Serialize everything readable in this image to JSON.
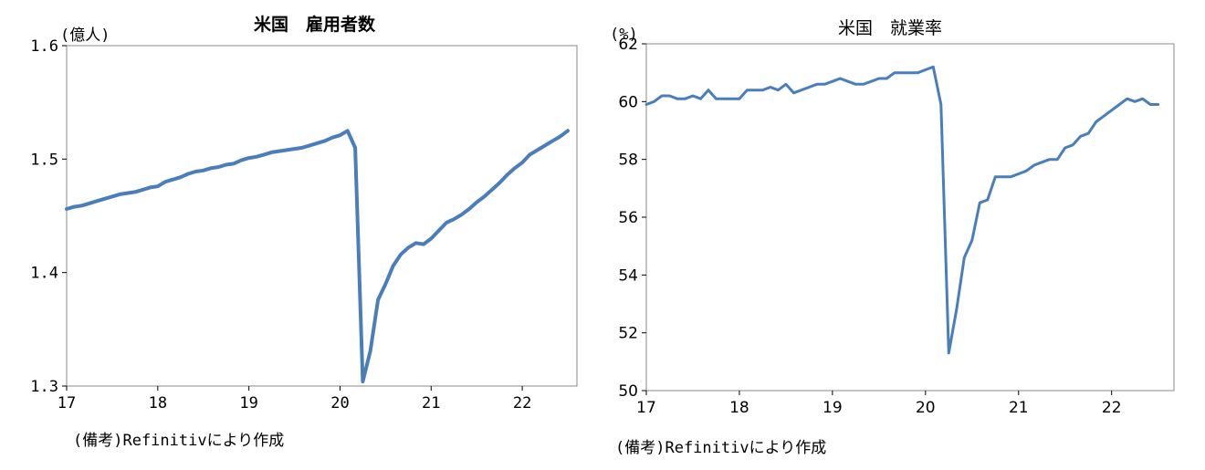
{
  "chart_data": [
    {
      "type": "line",
      "title": "米国　雇用者数",
      "unit_label": "(億人)",
      "source_note": "(備考)Refinitivにより作成",
      "color": "#4a7ebb",
      "ylim": [
        1.3,
        1.6
      ],
      "yticks": [
        "1.6",
        "1.5",
        "1.4",
        "1.3"
      ],
      "xlim": [
        17,
        22.6
      ],
      "xticks": [
        "17",
        "18",
        "19",
        "20",
        "21",
        "22"
      ],
      "series": [
        {
          "x": [
            17.0,
            17.083,
            17.167,
            17.25,
            17.333,
            17.417,
            17.5,
            17.583,
            17.667,
            17.75,
            17.833,
            17.917,
            18.0,
            18.083,
            18.167,
            18.25,
            18.333,
            18.417,
            18.5,
            18.583,
            18.667,
            18.75,
            18.833,
            18.917,
            19.0,
            19.083,
            19.167,
            19.25,
            19.333,
            19.417,
            19.5,
            19.583,
            19.667,
            19.75,
            19.833,
            19.917,
            20.0,
            20.083,
            20.167,
            20.25,
            20.333,
            20.417,
            20.5,
            20.583,
            20.667,
            20.75,
            20.833,
            20.917,
            21.0,
            21.083,
            21.167,
            21.25,
            21.333,
            21.417,
            21.5,
            21.583,
            21.667,
            21.75,
            21.833,
            21.917,
            22.0,
            22.083,
            22.167,
            22.25,
            22.333,
            22.417,
            22.5
          ],
          "values": [
            1.456,
            1.458,
            1.459,
            1.461,
            1.463,
            1.465,
            1.467,
            1.469,
            1.47,
            1.471,
            1.473,
            1.475,
            1.476,
            1.48,
            1.482,
            1.484,
            1.487,
            1.489,
            1.49,
            1.492,
            1.493,
            1.495,
            1.496,
            1.499,
            1.501,
            1.502,
            1.504,
            1.506,
            1.507,
            1.508,
            1.509,
            1.51,
            1.512,
            1.514,
            1.516,
            1.519,
            1.521,
            1.525,
            1.51,
            1.304,
            1.331,
            1.376,
            1.39,
            1.406,
            1.416,
            1.422,
            1.426,
            1.425,
            1.43,
            1.437,
            1.444,
            1.447,
            1.451,
            1.456,
            1.462,
            1.467,
            1.473,
            1.479,
            1.486,
            1.492,
            1.497,
            1.504,
            1.508,
            1.512,
            1.516,
            1.52,
            1.525
          ]
        }
      ]
    },
    {
      "type": "line",
      "title": "米国　就業率",
      "unit_label": "(%)",
      "source_note": "(備考)Refinitivにより作成",
      "color": "#4a7ebb",
      "ylim": [
        50,
        62
      ],
      "yticks": [
        "62",
        "60",
        "58",
        "56",
        "54",
        "52",
        "50"
      ],
      "xlim": [
        17,
        22.67
      ],
      "xticks": [
        "17",
        "18",
        "19",
        "20",
        "21",
        "22"
      ],
      "series": [
        {
          "x": [
            17.0,
            17.083,
            17.167,
            17.25,
            17.333,
            17.417,
            17.5,
            17.583,
            17.667,
            17.75,
            17.833,
            17.917,
            18.0,
            18.083,
            18.167,
            18.25,
            18.333,
            18.417,
            18.5,
            18.583,
            18.667,
            18.75,
            18.833,
            18.917,
            19.0,
            19.083,
            19.167,
            19.25,
            19.333,
            19.417,
            19.5,
            19.583,
            19.667,
            19.75,
            19.833,
            19.917,
            20.0,
            20.083,
            20.167,
            20.25,
            20.333,
            20.417,
            20.5,
            20.583,
            20.667,
            20.75,
            20.833,
            20.917,
            21.0,
            21.083,
            21.167,
            21.25,
            21.333,
            21.417,
            21.5,
            21.583,
            21.667,
            21.75,
            21.833,
            21.917,
            22.0,
            22.083,
            22.167,
            22.25,
            22.333,
            22.417,
            22.5
          ],
          "values": [
            59.9,
            60.0,
            60.2,
            60.2,
            60.1,
            60.1,
            60.2,
            60.1,
            60.4,
            60.1,
            60.1,
            60.1,
            60.1,
            60.4,
            60.4,
            60.4,
            60.5,
            60.4,
            60.6,
            60.3,
            60.4,
            60.5,
            60.6,
            60.6,
            60.7,
            60.8,
            60.7,
            60.6,
            60.6,
            60.7,
            60.8,
            60.8,
            61.0,
            61.0,
            61.0,
            61.0,
            61.1,
            61.2,
            59.9,
            51.3,
            52.8,
            54.6,
            55.2,
            56.5,
            56.6,
            57.4,
            57.4,
            57.4,
            57.5,
            57.6,
            57.8,
            57.9,
            58.0,
            58.0,
            58.4,
            58.5,
            58.8,
            58.9,
            59.3,
            59.5,
            59.7,
            59.9,
            60.1,
            60.0,
            60.1,
            59.9,
            59.9
          ]
        }
      ]
    }
  ]
}
